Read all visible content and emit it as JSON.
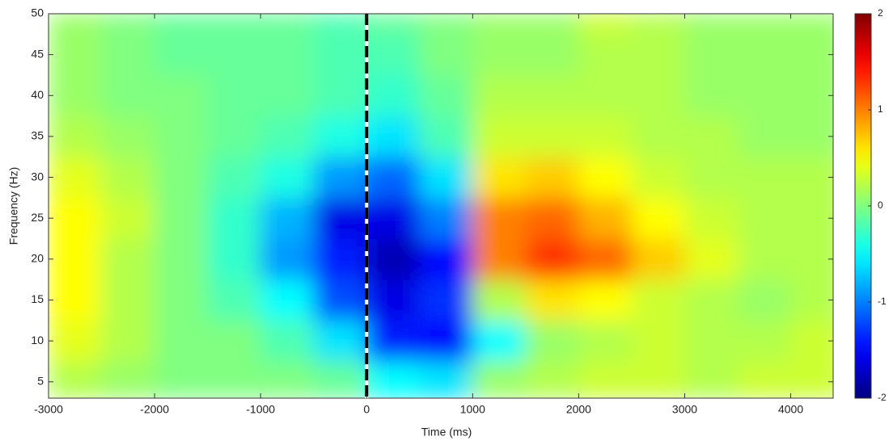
{
  "chart_data": {
    "type": "heatmap",
    "x_label": "Time (ms)",
    "y_label": "Frequency (Hz)",
    "colormap": "jet",
    "x_edges": [
      -3000,
      -2500,
      -2000,
      -1500,
      -1000,
      -500,
      0,
      500,
      1000,
      1500,
      2000,
      2500,
      3000,
      3500,
      4000,
      4500
    ],
    "y_edges": [
      3,
      7.5,
      12.5,
      17.5,
      22.5,
      27.5,
      32.5,
      37.5,
      42.5,
      47.5,
      50
    ],
    "z": [
      [
        0.2,
        0.1,
        0,
        0,
        0,
        -0.1,
        -0.5,
        -0.6,
        0.1,
        0.2,
        0.3,
        0.3,
        0.2,
        0.3,
        0.3
      ],
      [
        0.4,
        0.2,
        0,
        0,
        -0.2,
        -0.6,
        -1.4,
        -1.5,
        -0.5,
        0.1,
        0.2,
        0.3,
        0.2,
        0.2,
        0.3
      ],
      [
        0.5,
        0.2,
        0,
        -0.2,
        -0.5,
        -1.2,
        -1.6,
        -1.3,
        0.2,
        0.6,
        0.5,
        0.3,
        0.2,
        0.1,
        0.2
      ],
      [
        0.5,
        0.2,
        0,
        -0.3,
        -0.9,
        -1.4,
        -1.8,
        -1.5,
        1.0,
        1.3,
        1.1,
        0.7,
        0.4,
        0.2,
        0.2
      ],
      [
        0.5,
        0.3,
        0,
        -0.3,
        -0.8,
        -1.6,
        -1.6,
        -1.0,
        1.0,
        1.1,
        0.8,
        0.5,
        0.3,
        0.2,
        0.2
      ],
      [
        0.4,
        0.2,
        0,
        -0.2,
        -0.4,
        -0.9,
        -1.1,
        -0.6,
        0.6,
        0.7,
        0.5,
        0.3,
        0.2,
        0.2,
        0.2
      ],
      [
        0.2,
        0.1,
        0,
        -0.1,
        -0.2,
        -0.4,
        -0.6,
        -0.2,
        0.3,
        0.3,
        0.3,
        0.2,
        0.2,
        0.1,
        0.1
      ],
      [
        0.1,
        0,
        0,
        -0.1,
        -0.1,
        -0.2,
        -0.3,
        -0.1,
        0.2,
        0.2,
        0.2,
        0.2,
        0.1,
        0.1,
        0.1
      ],
      [
        0.1,
        0,
        -0.1,
        -0.1,
        -0.1,
        -0.2,
        -0.2,
        0,
        0.1,
        0.1,
        0.2,
        0.2,
        0.1,
        0.1,
        0.1
      ],
      [
        0.1,
        0,
        -0.1,
        -0.1,
        -0.1,
        -0.2,
        -0.1,
        0,
        0.1,
        0.1,
        0.3,
        0.2,
        0.1,
        0.1,
        0.1
      ]
    ],
    "xlim": [
      -3000,
      4400
    ],
    "ylim": [
      3,
      50
    ],
    "xticks": [
      -3000,
      -2000,
      -1000,
      0,
      1000,
      2000,
      3000,
      4000
    ],
    "yticks": [
      5,
      10,
      15,
      20,
      25,
      30,
      35,
      40,
      45,
      50
    ],
    "vline": 0,
    "clim": [
      -2,
      2
    ],
    "cticks": [
      -2,
      -1,
      0,
      1,
      2
    ]
  }
}
